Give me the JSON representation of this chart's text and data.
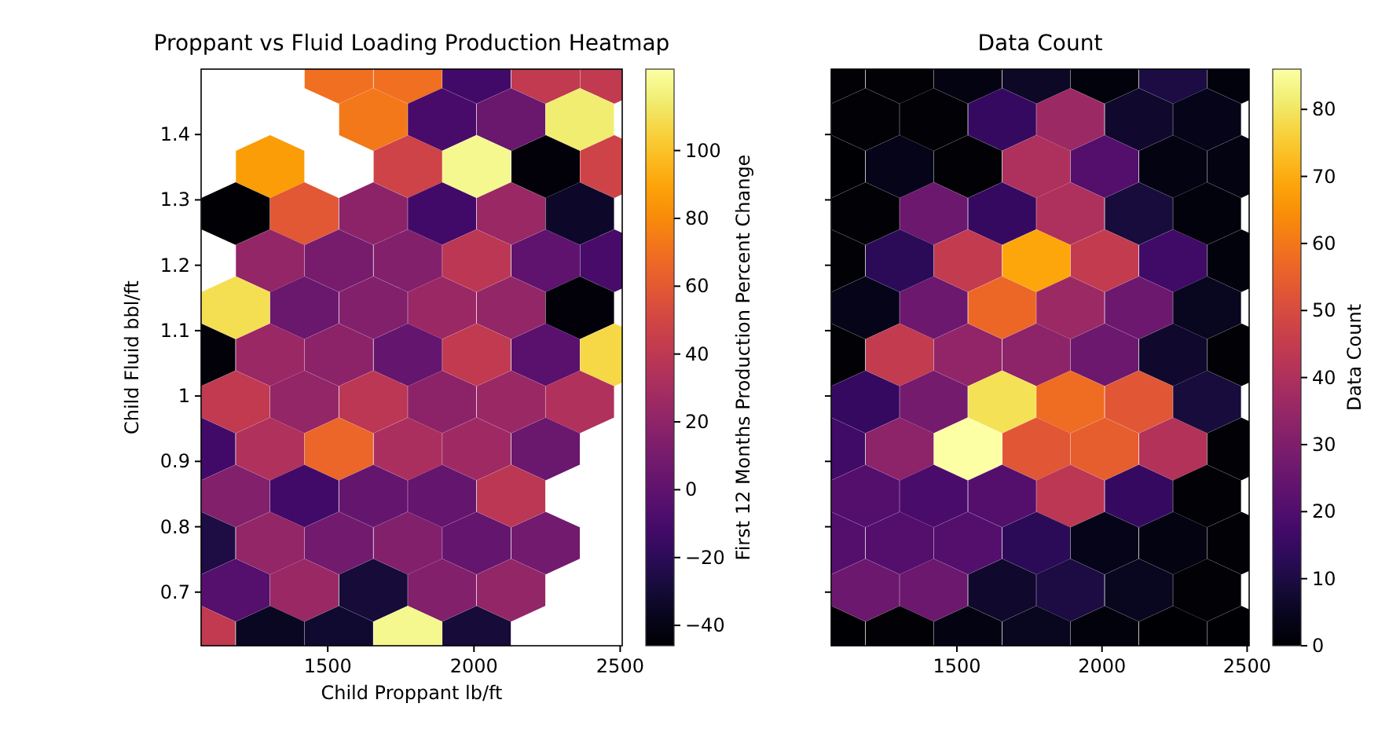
{
  "chart_data": [
    {
      "type": "scatter",
      "title": "Proppant vs Fluid Loading Production Heatmap",
      "xlabel": "Child Proppant lb/ft",
      "ylabel": "Child Fluid bbl/ft",
      "clabel": "First 12 Months Production Percent Change",
      "xlim": [
        1067,
        2507
      ],
      "xticks": [
        1500,
        2000,
        2500
      ],
      "ylim": [
        0.618,
        1.5
      ],
      "yticks": [
        0.7,
        0.8,
        0.9,
        1.0,
        1.1,
        1.2,
        1.3,
        1.4
      ],
      "clim": [
        -46,
        124
      ],
      "cticks": [
        {
          "value": -40,
          "label": "−40"
        },
        {
          "value": -20,
          "label": "−20"
        },
        0,
        20,
        40,
        60,
        80,
        100
      ],
      "x": [
        1538,
        1774,
        2009,
        2245,
        2480,
        1656,
        1891,
        2127,
        2362,
        1303,
        1774,
        2009,
        2245,
        2480,
        1185,
        1420,
        1656,
        1891,
        2127,
        2362,
        1303,
        1538,
        1774,
        2009,
        2245,
        2480,
        1185,
        1420,
        1656,
        1891,
        2127,
        2362,
        1067,
        1303,
        1538,
        1774,
        2009,
        2245,
        2480,
        1185,
        1420,
        1656,
        1891,
        2127,
        2362,
        1067,
        1303,
        1538,
        1774,
        2009,
        2245,
        1185,
        1420,
        1656,
        1891,
        2127,
        1067,
        1303,
        1538,
        1774,
        2009,
        2245,
        1185,
        1420,
        1656,
        1891,
        2127,
        1067,
        1303,
        1538,
        1774,
        2009
      ],
      "values": [
        1.495,
        1.495,
        1.495,
        1.495,
        1.495,
        1.423,
        1.423,
        1.423,
        1.423,
        1.351,
        1.351,
        1.351,
        1.351,
        1.351,
        1.279,
        1.279,
        1.279,
        1.279,
        1.279,
        1.279,
        1.207,
        1.207,
        1.207,
        1.207,
        1.207,
        1.207,
        1.135,
        1.135,
        1.135,
        1.135,
        1.135,
        1.135,
        1.063,
        1.063,
        1.063,
        1.063,
        1.063,
        1.063,
        1.063,
        0.991,
        0.991,
        0.991,
        0.991,
        0.991,
        0.991,
        0.919,
        0.919,
        0.919,
        0.919,
        0.919,
        0.919,
        0.847,
        0.847,
        0.847,
        0.847,
        0.847,
        0.775,
        0.775,
        0.775,
        0.775,
        0.775,
        0.775,
        0.703,
        0.703,
        0.703,
        0.703,
        0.703,
        0.631,
        0.631,
        0.631,
        0.631,
        0.631
      ],
      "cvalues": [
        70,
        70,
        -12,
        42,
        42,
        73,
        -9,
        5,
        115,
        87,
        48,
        120,
        -43,
        48,
        -45,
        59,
        19,
        -12,
        25,
        -34,
        22,
        10,
        15,
        39,
        0,
        -9,
        110,
        5,
        15,
        25,
        22,
        -43,
        -43,
        25,
        19,
        2,
        42,
        -2,
        107,
        42,
        22,
        39,
        19,
        25,
        34,
        -12,
        34,
        66,
        32,
        27,
        5,
        15,
        -12,
        2,
        2,
        39,
        -26,
        22,
        8,
        15,
        2,
        8,
        -4,
        25,
        -29,
        15,
        22,
        42,
        -36,
        -32,
        120,
        -29
      ]
    },
    {
      "type": "scatter",
      "title": "Data Count",
      "clabel": "Data Count",
      "tick_labels": "x",
      "xlim": [
        1067,
        2507
      ],
      "xticks": [
        1500,
        2000,
        2500
      ],
      "ylim": [
        0.618,
        1.5
      ],
      "yticks": [
        {
          "value": 0.7,
          "label": null
        },
        {
          "value": 0.8,
          "label": null
        },
        {
          "value": 0.9,
          "label": null
        },
        {
          "value": 1.0,
          "label": null
        },
        {
          "value": 1.1,
          "label": null
        },
        {
          "value": 1.2,
          "label": null
        },
        {
          "value": 1.3,
          "label": null
        },
        {
          "value": 1.4,
          "label": null
        }
      ],
      "clim": [
        0,
        86
      ],
      "cticks": [
        0,
        10,
        20,
        30,
        40,
        50,
        60,
        70,
        80
      ],
      "x": [
        1067,
        1303,
        1538,
        1774,
        2009,
        2245,
        2480,
        1185,
        1420,
        1656,
        1891,
        2127,
        2362,
        1067,
        1303,
        1538,
        1774,
        2009,
        2245,
        2480,
        1185,
        1420,
        1656,
        1891,
        2127,
        2362,
        1067,
        1303,
        1538,
        1774,
        2009,
        2245,
        2480,
        1185,
        1420,
        1656,
        1891,
        2127,
        2362,
        1067,
        1303,
        1538,
        1774,
        2009,
        2245,
        2480,
        1185,
        1420,
        1656,
        1891,
        2127,
        2362,
        1067,
        1303,
        1538,
        1774,
        2009,
        2245,
        2480,
        1185,
        1420,
        1656,
        1891,
        2127,
        2362,
        1067,
        1303,
        1538,
        1774,
        2009,
        2245,
        2480,
        1185,
        1420,
        1656,
        1891,
        2127,
        2362,
        1067,
        1303,
        1538,
        1774,
        2009,
        2245,
        2480
      ],
      "values": [
        1.495,
        1.495,
        1.495,
        1.495,
        1.495,
        1.495,
        1.495,
        1.423,
        1.423,
        1.423,
        1.423,
        1.423,
        1.423,
        1.351,
        1.351,
        1.351,
        1.351,
        1.351,
        1.351,
        1.351,
        1.279,
        1.279,
        1.279,
        1.279,
        1.279,
        1.279,
        1.207,
        1.207,
        1.207,
        1.207,
        1.207,
        1.207,
        1.207,
        1.135,
        1.135,
        1.135,
        1.135,
        1.135,
        1.135,
        1.063,
        1.063,
        1.063,
        1.063,
        1.063,
        1.063,
        1.063,
        0.991,
        0.991,
        0.991,
        0.991,
        0.991,
        0.991,
        0.919,
        0.919,
        0.919,
        0.919,
        0.919,
        0.919,
        0.919,
        0.847,
        0.847,
        0.847,
        0.847,
        0.847,
        0.847,
        0.775,
        0.775,
        0.775,
        0.775,
        0.775,
        0.775,
        0.775,
        0.703,
        0.703,
        0.703,
        0.703,
        0.703,
        0.703,
        0.631,
        0.631,
        0.631,
        0.631,
        0.631,
        0.631,
        0.631
      ],
      "cvalues": [
        1,
        1,
        3,
        6,
        2,
        10,
        2,
        1,
        1,
        15,
        36,
        7,
        4,
        0,
        4,
        1,
        40,
        21,
        3,
        3,
        1,
        26,
        15,
        40,
        9,
        2,
        1,
        13,
        45,
        69,
        45,
        17,
        2,
        4,
        26,
        57,
        36,
        26,
        5,
        1,
        45,
        34,
        33,
        26,
        7,
        1,
        15,
        28,
        79,
        58,
        53,
        9,
        17,
        33,
        86,
        53,
        55,
        41,
        1,
        21,
        19,
        21,
        43,
        15,
        1,
        21,
        21,
        21,
        13,
        4,
        3,
        1,
        26,
        26,
        7,
        10,
        5,
        1,
        0,
        1,
        3,
        5,
        2,
        0,
        0
      ]
    }
  ]
}
